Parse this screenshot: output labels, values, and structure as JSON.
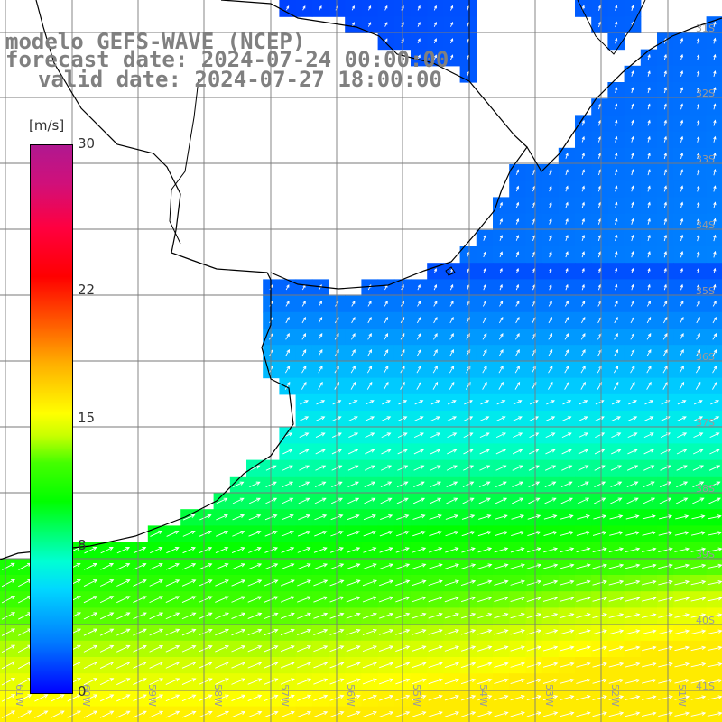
{
  "header": {
    "line1": "modelo GEFS-WAVE (NCEP)",
    "line2": "forecast date: 2024-07-24 00:00:00",
    "line3": "valid date: 2024-07-27 18:00:00"
  },
  "colorbar": {
    "units": "[m/s]",
    "ticks": [
      {
        "value": 30,
        "label": "30"
      },
      {
        "value": 22,
        "label": "22"
      },
      {
        "value": 15,
        "label": "15"
      },
      {
        "value": 8,
        "label": "8"
      },
      {
        "value": 0,
        "label": "0"
      }
    ],
    "range": [
      0,
      30
    ]
  },
  "map": {
    "lat_labels": [
      "31S",
      "32S",
      "33S",
      "34S",
      "35S",
      "36S",
      "37S",
      "38S",
      "39S",
      "40S",
      "41S"
    ],
    "lon_labels": [
      "61W",
      "60W",
      "59W",
      "58W",
      "57W",
      "56W",
      "55W",
      "54W",
      "53W",
      "52W",
      "51W"
    ],
    "colors": {
      "land": "#ffffff",
      "grid": "#7a7a7a",
      "coast": "#000000",
      "arrows": "#ffffff",
      "header_text": "#808080"
    }
  }
}
